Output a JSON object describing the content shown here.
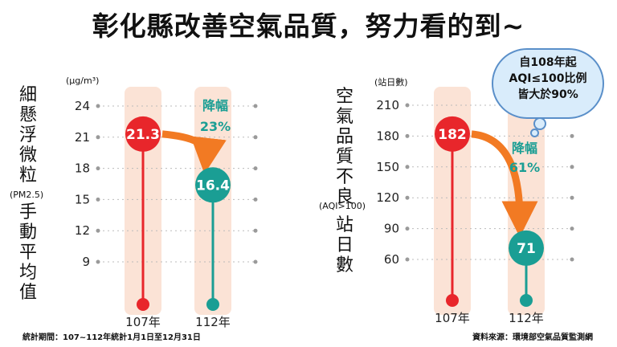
{
  "title": "彰化縣改善空氣品質，努力看的到~",
  "left_panel": {
    "ylabel_top": "細懸浮微粒",
    "ylabel_pm": "(PM2.5)",
    "ylabel_bottom": "手動平均值",
    "unit": "(μg/m³)",
    "change_label": "降幅",
    "change_value": "23%"
  },
  "right_panel": {
    "ylabel_top": "空氣品質不良",
    "ylabel_aqi": "(AQI>100)",
    "ylabel_bottom": "站日數",
    "unit": "(站日數)",
    "change_label": "降幅",
    "change_value": "61%"
  },
  "bubble": {
    "line1": "自108年起",
    "line2": "AQI≤100比例",
    "line3": "皆大於90%"
  },
  "footer": {
    "left": "統計期間：107~112年統計1月1日至12月31日",
    "right": "資料來源：環境部空氣品質監測網"
  },
  "colors": {
    "red": "#e8262b",
    "teal": "#1a9e94",
    "column_bg": "#fbe3d6",
    "arrow": "#f27a23"
  },
  "chart_data": [
    {
      "type": "bar",
      "categories": [
        "107年",
        "112年"
      ],
      "values": [
        21.3,
        16.4
      ],
      "value_labels": [
        "21.3",
        "16.4"
      ],
      "yticks": [
        24,
        21,
        18,
        15,
        12,
        9
      ],
      "ylim": [
        6,
        24
      ],
      "grid": true
    },
    {
      "type": "bar",
      "categories": [
        "107年",
        "112年"
      ],
      "values": [
        182,
        71
      ],
      "value_labels": [
        "182",
        "71"
      ],
      "yticks": [
        210,
        180,
        150,
        120,
        90,
        60
      ],
      "ylim": [
        30,
        210
      ],
      "grid": true
    }
  ]
}
